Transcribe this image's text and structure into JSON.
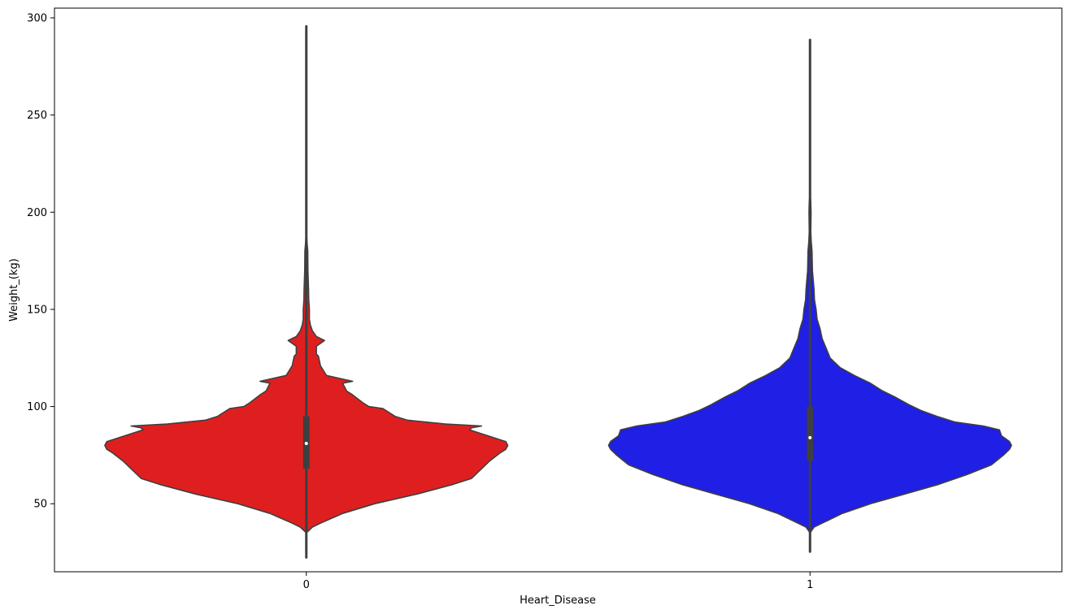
{
  "chart_data": {
    "type": "violin",
    "xlabel": "Heart_Disease",
    "ylabel": "Weight_(kg)",
    "ylim": [
      15,
      305
    ],
    "yticks": [
      50,
      100,
      150,
      200,
      250,
      300
    ],
    "categories": [
      "0",
      "1"
    ],
    "grid": false,
    "legend": "none",
    "series": [
      {
        "category": "0",
        "color": "#df1f1f",
        "min": 22,
        "max": 296,
        "q1": 68,
        "median": 81,
        "q3": 95,
        "whisker_low": 40,
        "whisker_high": 136,
        "density": [
          [
            22,
            0.0
          ],
          [
            35,
            0.0
          ],
          [
            38,
            0.03
          ],
          [
            40,
            0.07
          ],
          [
            45,
            0.18
          ],
          [
            50,
            0.34
          ],
          [
            55,
            0.55
          ],
          [
            60,
            0.73
          ],
          [
            63,
            0.82
          ],
          [
            68,
            0.87
          ],
          [
            72,
            0.91
          ],
          [
            76,
            0.96
          ],
          [
            78,
            0.99
          ],
          [
            80,
            1.0
          ],
          [
            82,
            0.99
          ],
          [
            85,
            0.9
          ],
          [
            88,
            0.81
          ],
          [
            89,
            0.82
          ],
          [
            90,
            0.87
          ],
          [
            91,
            0.69
          ],
          [
            93,
            0.5
          ],
          [
            95,
            0.44
          ],
          [
            99,
            0.38
          ],
          [
            100,
            0.31
          ],
          [
            102,
            0.28
          ],
          [
            106,
            0.23
          ],
          [
            108,
            0.2
          ],
          [
            112,
            0.18
          ],
          [
            113,
            0.23
          ],
          [
            116,
            0.1
          ],
          [
            121,
            0.07
          ],
          [
            126,
            0.06
          ],
          [
            127,
            0.05
          ],
          [
            131,
            0.05
          ],
          [
            134,
            0.09
          ],
          [
            136,
            0.05
          ],
          [
            139,
            0.03
          ],
          [
            142,
            0.02
          ],
          [
            145,
            0.015
          ],
          [
            150,
            0.015
          ],
          [
            155,
            0.012
          ],
          [
            160,
            0.011
          ],
          [
            170,
            0.008
          ],
          [
            180,
            0.007
          ],
          [
            184,
            0.004
          ],
          [
            190,
            0.0
          ],
          [
            296,
            0.0
          ]
        ]
      },
      {
        "category": "1",
        "color": "#1f1fe6",
        "min": 25,
        "max": 289,
        "q1": 72,
        "median": 84,
        "q3": 100,
        "whisker_low": 40,
        "whisker_high": 140,
        "density": [
          [
            25,
            0.0
          ],
          [
            35,
            0.0
          ],
          [
            38,
            0.02
          ],
          [
            40,
            0.06
          ],
          [
            45,
            0.16
          ],
          [
            50,
            0.3
          ],
          [
            55,
            0.47
          ],
          [
            60,
            0.64
          ],
          [
            65,
            0.78
          ],
          [
            70,
            0.9
          ],
          [
            75,
            0.96
          ],
          [
            78,
            0.99
          ],
          [
            80,
            1.0
          ],
          [
            82,
            0.99
          ],
          [
            85,
            0.95
          ],
          [
            88,
            0.94
          ],
          [
            90,
            0.86
          ],
          [
            92,
            0.72
          ],
          [
            95,
            0.63
          ],
          [
            98,
            0.55
          ],
          [
            101,
            0.49
          ],
          [
            105,
            0.42
          ],
          [
            108,
            0.36
          ],
          [
            112,
            0.3
          ],
          [
            116,
            0.22
          ],
          [
            120,
            0.15
          ],
          [
            125,
            0.1
          ],
          [
            130,
            0.08
          ],
          [
            135,
            0.06
          ],
          [
            140,
            0.05
          ],
          [
            145,
            0.035
          ],
          [
            150,
            0.03
          ],
          [
            155,
            0.022
          ],
          [
            160,
            0.02
          ],
          [
            170,
            0.012
          ],
          [
            180,
            0.01
          ],
          [
            185,
            0.006
          ],
          [
            190,
            0.004
          ],
          [
            200,
            0.005
          ],
          [
            205,
            0.004
          ],
          [
            210,
            0.0
          ],
          [
            289,
            0.0
          ]
        ]
      }
    ]
  }
}
